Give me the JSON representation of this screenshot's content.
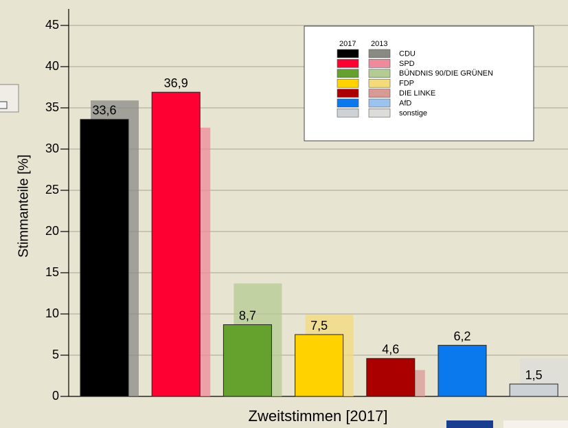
{
  "chart_data": {
    "type": "bar",
    "y_label": "Stimmanteile [%]",
    "x_label": "Zweitstimmen [2017]",
    "categories": [
      "CDU",
      "SPD",
      "BÜNDNIS 90/DIE GRÜNEN",
      "FDP",
      "DIE LINKE",
      "AfD",
      "sonstige"
    ],
    "series": [
      {
        "name": "2013",
        "colors": [
          "#8a8a85",
          "#ee8a9a",
          "#b4cb92",
          "#f3db7c",
          "#d99a95",
          "#9cc3ee",
          "#dcdcd8"
        ],
        "values": [
          35.9,
          32.6,
          13.7,
          9.9,
          3.2,
          null,
          4.6
        ]
      },
      {
        "name": "2017",
        "colors": [
          "#000000",
          "#ff0033",
          "#64a12d",
          "#ffd200",
          "#aa0000",
          "#0a79ee",
          "#ccd2d6"
        ],
        "values": [
          33.6,
          36.9,
          8.7,
          7.5,
          4.6,
          6.2,
          1.5
        ],
        "value_labels": [
          "33,6",
          "36,9",
          "8,7",
          "7,5",
          "4,6",
          "6,2",
          "1,5"
        ]
      }
    ],
    "ylim": [
      0,
      47
    ],
    "yticks": [
      0,
      5,
      10,
      15,
      20,
      25,
      30,
      35,
      40,
      45
    ],
    "grid": true,
    "legend": "top-right"
  }
}
